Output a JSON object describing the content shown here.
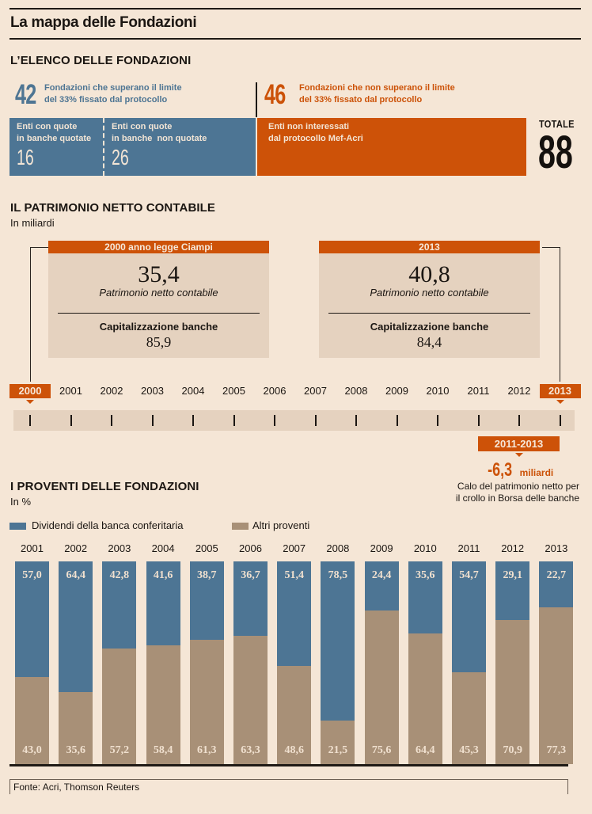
{
  "title": "La mappa delle Fondazioni",
  "colors": {
    "background": "#f5e6d6",
    "blue": "#4d7594",
    "orange": "#cd5208",
    "tan": "#a89077",
    "panel": "#e5d2bf"
  },
  "elenco": {
    "heading": "L’ELENCO DELLE FONDAZIONI",
    "over": {
      "count": "42",
      "line1": "Fondazioni che superano il limite",
      "line2": "del 33% fissato dal protocollo"
    },
    "under": {
      "count": "46",
      "line1": "Fondazioni che non superano il limite",
      "line2": "del 33% fissato dal protocollo"
    },
    "boxes": [
      {
        "line1": "Enti con quote",
        "line2": "in banche quotate",
        "value": "16"
      },
      {
        "line1": "Enti con quote",
        "line2": "in banche  non quotate",
        "value": "26"
      },
      {
        "line1": "Enti non interessati",
        "line2": "dal protocollo Mef-Acri"
      }
    ],
    "total_label": "TOTALE",
    "total_value": "88"
  },
  "patrimonio": {
    "heading": "IL PATRIMONIO NETTO CONTABILE",
    "unit": "In miliardi",
    "panels": [
      {
        "header": "2000 anno legge Ciampi",
        "value": "35,4",
        "value_label": "Patrimonio netto contabile",
        "cap_label": "Capitalizzazione banche",
        "cap_value": "85,9"
      },
      {
        "header": "2013",
        "value": "40,8",
        "value_label": "Patrimonio netto contabile",
        "cap_label": "Capitalizzazione banche",
        "cap_value": "84,4"
      }
    ],
    "timeline_years": [
      "2000",
      "2001",
      "2002",
      "2003",
      "2004",
      "2005",
      "2006",
      "2007",
      "2008",
      "2009",
      "2010",
      "2011",
      "2012",
      "2013"
    ],
    "highlighted_years": [
      "2000",
      "2013"
    ],
    "callout": {
      "period": "2011-2013",
      "value": "-6,3",
      "unit": "miliardi",
      "line1": "Calo del patrimonio netto per",
      "line2": "il crollo in Borsa delle banche"
    }
  },
  "chart_data": {
    "type": "bar",
    "stacked": true,
    "title": "I PROVENTI DELLE FONDAZIONI",
    "subtitle": "In %",
    "xlabel": "",
    "ylabel": "",
    "ylim": [
      0,
      100
    ],
    "legend_position": "top-left",
    "categories": [
      "2001",
      "2002",
      "2003",
      "2004",
      "2005",
      "2006",
      "2007",
      "2008",
      "2009",
      "2010",
      "2011",
      "2012",
      "2013"
    ],
    "series": [
      {
        "name": "Dividendi della banca conferitaria",
        "color": "#4d7594",
        "values": [
          57.0,
          64.4,
          42.8,
          41.6,
          38.7,
          36.7,
          51.4,
          78.5,
          24.4,
          35.6,
          54.7,
          29.1,
          22.7
        ],
        "labels": [
          "57,0",
          "64,4",
          "42,8",
          "41,6",
          "38,7",
          "36,7",
          "51,4",
          "78,5",
          "24,4",
          "35,6",
          "54,7",
          "29,1",
          "22,7"
        ]
      },
      {
        "name": "Altri proventi",
        "color": "#a89077",
        "values": [
          43.0,
          35.6,
          57.2,
          58.4,
          61.3,
          63.3,
          48.6,
          21.5,
          75.6,
          64.4,
          45.3,
          70.9,
          77.3
        ],
        "labels": [
          "43,0",
          "35,6",
          "57,2",
          "58,4",
          "61,3",
          "63,3",
          "48,6",
          "21,5",
          "75,6",
          "64,4",
          "45,3",
          "70,9",
          "77,3"
        ]
      }
    ]
  },
  "source": "Fonte: Acri, Thomson Reuters"
}
